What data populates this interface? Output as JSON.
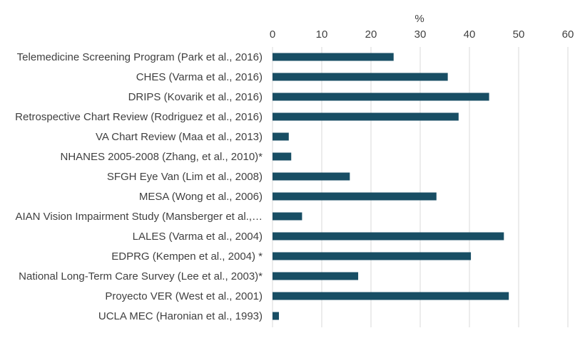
{
  "chart_data": {
    "type": "bar",
    "orientation": "horizontal",
    "x_axis_title": "%",
    "x_axis_position": "top",
    "xlim": [
      0,
      60
    ],
    "xticks": [
      0,
      10,
      20,
      30,
      40,
      50,
      60
    ],
    "grid": true,
    "bar_color": "#184e64",
    "categories": [
      "Telemedicine Screening Program (Park et al., 2016)",
      "CHES (Varma et al., 2016)",
      "DRIPS (Kovarik et al., 2016)",
      "Retrospective Chart Review (Rodriguez et al., 2016)",
      "VA Chart Review (Maa et al., 2013)",
      "NHANES 2005-2008 (Zhang, et al., 2010)*",
      "SFGH Eye Van (Lim et al., 2008)",
      "MESA (Wong et al., 2006)",
      "AIAN Vision Impairment Study (Mansberger et al.,…",
      "LALES (Varma et al., 2004)",
      "EDPRG (Kempen et al., 2004) *",
      "National Long-Term Care Survey (Lee et al., 2003)*",
      "Proyecto VER (West et al., 2001)",
      "UCLA MEC (Haronian et al., 1993)"
    ],
    "values": [
      24.6,
      35.6,
      44.0,
      37.8,
      3.3,
      3.8,
      15.7,
      33.3,
      6.0,
      47.0,
      40.3,
      17.4,
      48.0,
      1.3
    ]
  }
}
